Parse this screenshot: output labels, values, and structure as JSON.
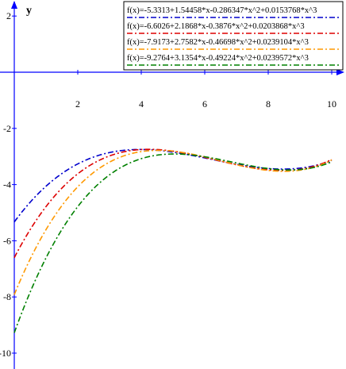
{
  "chart_data": {
    "type": "line",
    "title": "",
    "xlabel": "",
    "ylabel": "y",
    "xlim": [
      -0.5,
      10.4
    ],
    "ylim": [
      -10.4,
      2.8
    ],
    "xticks": [
      2,
      4,
      6,
      8,
      10
    ],
    "yticks": [
      2,
      -2,
      -4,
      -6,
      -8,
      -10
    ],
    "grid": false,
    "legend_position": "top-right",
    "axis_color": "#0000ff",
    "series": [
      {
        "name": "f(x)=-5.3313+1.54458*x-0.286347*x^2+0.0153768*x^3",
        "coefficients": [
          -5.3313,
          1.54458,
          -0.286347,
          0.0153768
        ],
        "x_range": [
          0,
          10
        ],
        "color": "#0000cc",
        "dash": "dash-dot"
      },
      {
        "name": "f(x)=-6.6026+2.1868*x-0.3876*x^2+0.0203868*x^3",
        "coefficients": [
          -6.6026,
          2.1868,
          -0.3876,
          0.0203868
        ],
        "x_range": [
          0,
          10
        ],
        "color": "#dd0000",
        "dash": "dash-dot"
      },
      {
        "name": "f(x)=-7.9173+2.7582*x-0.46698*x^2+0.0239104*x^3",
        "coefficients": [
          -7.9173,
          2.7582,
          -0.46698,
          0.0239104
        ],
        "x_range": [
          0,
          10
        ],
        "color": "#ff9900",
        "dash": "dash-dot"
      },
      {
        "name": "f(x)=-9.2764+3.1354*x-0.49224*x^2+0.0239572*x^3",
        "coefficients": [
          -9.2764,
          3.1354,
          -0.49224,
          0.0239572
        ],
        "x_range": [
          0,
          10
        ],
        "color": "#008000",
        "dash": "dash-dot"
      }
    ]
  }
}
